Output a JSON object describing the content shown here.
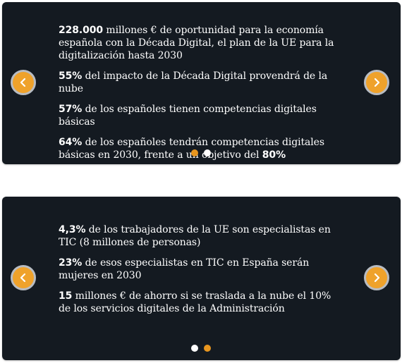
{
  "carousel1": {
    "stats": [
      {
        "value": "228.000",
        "text": " millones € de oportunidad para la economía española con la Década Digital, el plan de la UE para la digitalización hasta 2030"
      },
      {
        "value": "55%",
        "text": " del impacto de la Década Digital provendrá de la nube"
      },
      {
        "value": "57%",
        "text": "  de los españoles tienen competencias digitales básicas"
      },
      {
        "value": "64%",
        "text": " de los españoles tendrán competencias digitales básicas en 2030, frente a un objetivo del ",
        "value2": "80%"
      }
    ],
    "active_dot": 1
  },
  "carousel2": {
    "stats": [
      {
        "value": "4,3%",
        "text": " de los trabajadores de la UE son especialistas en TIC (8 millones de personas)"
      },
      {
        "value": "23%",
        "text": "  de esos especialistas en TIC en España serán mujeres en 2030"
      },
      {
        "value": "15",
        "text": "  millones € de ahorro si se traslada a la nube el 10% de los servicios digitales de la Administración"
      }
    ],
    "active_dot": 2
  },
  "colors": {
    "card_bg": "#141a21",
    "accent": "#efa22b",
    "text": "#ffffff"
  },
  "icons": {
    "prev": "chevron-left-icon",
    "next": "chevron-right-icon"
  }
}
